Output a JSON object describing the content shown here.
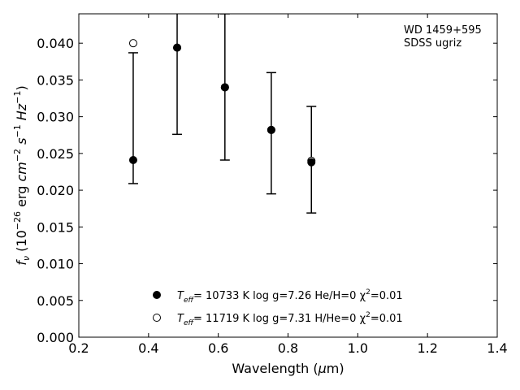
{
  "chart_data": {
    "type": "scatter",
    "xlabel": "Wavelength (μm)",
    "ylabel": "f_ν (10^-26 erg cm^-2 s^-1 Hz^-1)",
    "xlim": [
      0.2,
      1.4
    ],
    "ylim": [
      0.0,
      0.044
    ],
    "x_ticks": [
      0.2,
      0.4,
      0.6,
      0.8,
      1.0,
      1.2,
      1.4
    ],
    "x_tick_labels": [
      "0.2",
      "0.4",
      "0.6",
      "0.8",
      "1.0",
      "1.2",
      "1.4"
    ],
    "y_ticks": [
      0.0,
      0.005,
      0.01,
      0.015,
      0.02,
      0.025,
      0.03,
      0.035,
      0.04
    ],
    "y_tick_labels": [
      "0.000",
      "0.005",
      "0.010",
      "0.015",
      "0.020",
      "0.025",
      "0.030",
      "0.035",
      "0.040"
    ],
    "grid": false,
    "annotation_lines": [
      "WD 1459+595",
      "SDSS ugriz"
    ],
    "series": [
      {
        "marker": "filled-circle",
        "legend_parts": [
          "T",
          "eff",
          "= 10733 K  log g=7.26  He/H=0  χ",
          "2",
          "=0.01"
        ],
        "points": [
          {
            "x": 0.356,
            "y": 0.0241,
            "yerr_low": 0.0209,
            "yerr_high": 0.0387
          },
          {
            "x": 0.482,
            "y": 0.0394,
            "yerr_low": 0.0276,
            "yerr_high": 0.0513
          },
          {
            "x": 0.619,
            "y": 0.034,
            "yerr_low": 0.0241,
            "yerr_high": 0.044
          },
          {
            "x": 0.752,
            "y": 0.0282,
            "yerr_low": 0.0195,
            "yerr_high": 0.036
          },
          {
            "x": 0.867,
            "y": 0.0238,
            "yerr_low": 0.0169,
            "yerr_high": 0.0314
          }
        ]
      },
      {
        "marker": "open-circle",
        "legend_parts": [
          "T",
          "eff",
          "= 11719 K  log g=7.31  H/He=0  χ",
          "2",
          "=0.01"
        ],
        "points": [
          {
            "x": 0.356,
            "y": 0.04
          },
          {
            "x": 0.482,
            "y": 0.0394
          },
          {
            "x": 0.619,
            "y": 0.034
          },
          {
            "x": 0.752,
            "y": 0.0282
          },
          {
            "x": 0.867,
            "y": 0.024
          }
        ]
      }
    ]
  }
}
